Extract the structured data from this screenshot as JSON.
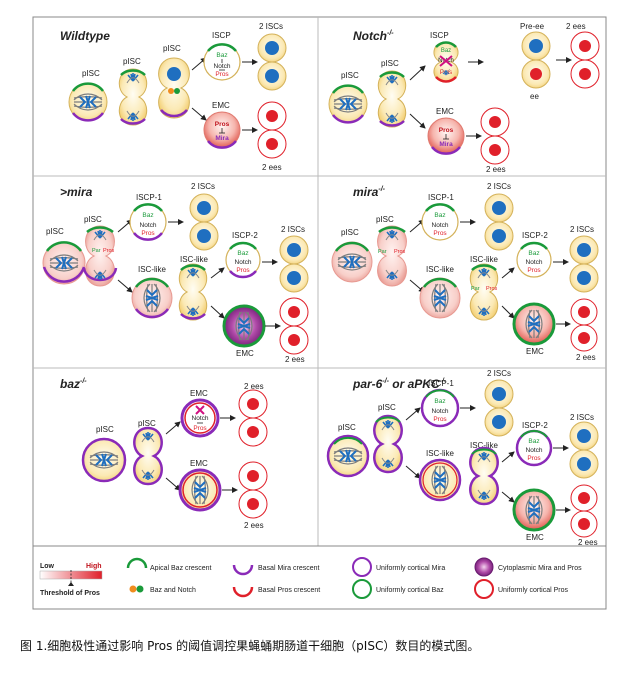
{
  "panels": {
    "wildtype": {
      "title": "Wildtype",
      "labels": {
        "pisc_left": "pISC",
        "pisc_mid": "pISC",
        "pisc_right": "pISC",
        "iscp": "ISCP",
        "emc": "EMC",
        "out_iscs": "2 ISCs",
        "out_ees": "2 ees"
      },
      "iscp_text": {
        "baz": "Baz",
        "notch": "Notch",
        "pros": "Pros"
      },
      "emc_text": {
        "pros": "Pros",
        "mira": "Mira"
      }
    },
    "notch": {
      "title": "Notch",
      "sup": "-/-",
      "labels": {
        "pisc_left": "pISC",
        "pisc_mid": "pISC",
        "iscp": "ISCP",
        "emc": "EMC",
        "pre_ee": "Pre-ee",
        "ee": "ee",
        "out_ees_top": "2 ees",
        "out_ees_bot": "2 ees"
      },
      "iscp_text": {
        "baz": "Baz",
        "notch": "Notch",
        "pros": "Pros"
      },
      "emc_text": {
        "pros": "Pros",
        "mira": "Mira"
      }
    },
    "mira_over": {
      "title": ">mira",
      "labels": {
        "pisc_left": "pISC",
        "pisc_mid": "pISC",
        "iscp1": "ISCP-1",
        "iscp2": "ISCP-2",
        "isc_like_1": "ISC-like",
        "isc_like_2": "ISC-like",
        "emc": "EMC",
        "out_iscs_1": "2 ISCs",
        "out_iscs_2": "2 ISCs",
        "out_ees": "2 ees"
      },
      "par_pros": {
        "par": "Par",
        "pros": "Pros"
      },
      "iscp_text": {
        "baz": "Baz",
        "notch": "Notch",
        "pros": "Pros"
      }
    },
    "mira_mut": {
      "title": "mira",
      "sup": "-/-",
      "labels": {
        "pisc_left": "pISC",
        "pisc_mid": "pISC",
        "iscp1": "ISCP-1",
        "iscp2": "ISCP-2",
        "isc_like_1": "ISC-like",
        "isc_like_2": "ISC-like",
        "emc": "EMC",
        "out_iscs_1": "2 ISCs",
        "out_iscs_2": "2 ISCs",
        "out_ees": "2 ees"
      },
      "par_pros": {
        "par": "Par",
        "pros": "Pros"
      },
      "iscp_text": {
        "baz": "Baz",
        "notch": "Notch",
        "pros": "Pros"
      }
    },
    "baz": {
      "title": "baz",
      "sup": "-/-",
      "labels": {
        "pisc_left": "pISC",
        "pisc_mid": "pISC",
        "emc_top": "EMC",
        "emc_bot": "EMC",
        "out_ees_top": "2 ees",
        "out_ees_bot": "2 ees"
      },
      "emc_text": {
        "notch": "Notch",
        "pros": "Pros"
      }
    },
    "par6": {
      "title": "par-6",
      "sup": "-/-",
      "title_mid": " or aPKC",
      "sup2": "-/-",
      "labels": {
        "pisc_left": "pISC",
        "pisc_mid": "pISC",
        "iscp1": "ISCP-1",
        "iscp2": "ISCP-2",
        "isc_like_1": "ISC-like",
        "isc_like_2": "ISC-like",
        "emc": "EMC",
        "out_iscs_1": "2 ISCs",
        "out_iscs_2": "2 ISCs",
        "out_ees": "2 ees"
      },
      "iscp_text": {
        "baz": "Baz",
        "notch": "Notch",
        "pros": "Pros"
      }
    }
  },
  "legend": {
    "low": "Low",
    "high": "High",
    "threshold": "Threshold of Pros",
    "apical_baz": "Apical Baz crescent",
    "baz_notch": "Baz and Notch",
    "basal_mira": "Basal Mira crescent",
    "basal_pros": "Basal Pros crescent",
    "uniform_mira": "Uniformly cortical Mira",
    "uniform_baz": "Uniformly cortical Baz",
    "cyto_mira_pros": "Cytoplasmic Mira and Pros",
    "uniform_pros": "Uniformly cortical Pros"
  },
  "colors": {
    "baz_green": "#1a9a3a",
    "mira_purple": "#8a2ab8",
    "pros_red": "#e0202a",
    "nucleus_blue": "#1f6fc0",
    "cell_fill": "#fbe5a6",
    "notch_orange": "#f08c1e"
  },
  "caption": "图 1.细胞极性通过影响 Pros 的阈值调控果蝇蛹期肠道干细胞（pISC）数目的模式图。"
}
